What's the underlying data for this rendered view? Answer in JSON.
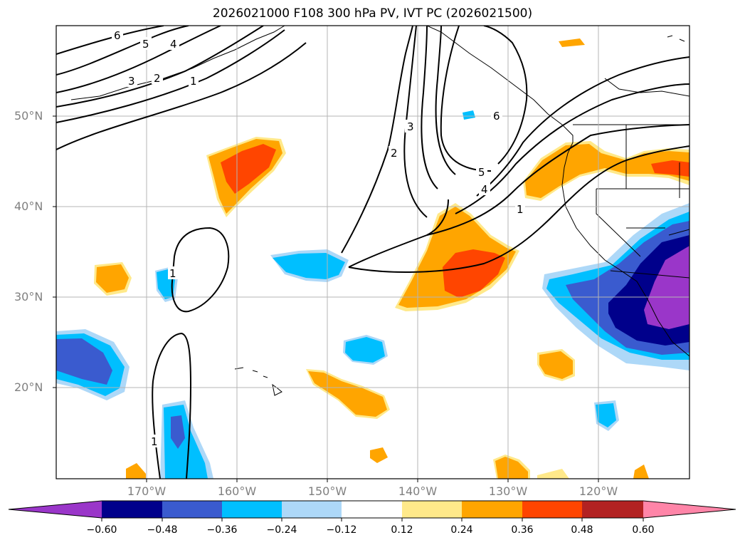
{
  "title": "2026021000 F108 300 hPa PV, IVT PC (2026021500)",
  "map": {
    "lat_labels": [
      "50°N",
      "40°N",
      "30°N",
      "20°N"
    ],
    "lon_labels": [
      "170°W",
      "160°W",
      "150°W",
      "140°W",
      "130°W",
      "120°W"
    ],
    "extent": {
      "lon_min": -180,
      "lon_max": -110,
      "lat_min": 10,
      "lat_max": 60
    },
    "contour_labels": [
      "6",
      "5",
      "4",
      "3",
      "2",
      "1",
      "2",
      "3",
      "6",
      "5",
      "4",
      "1",
      "1",
      "1"
    ]
  },
  "colorbar": {
    "ticks": [
      "−0.60",
      "−0.48",
      "−0.36",
      "−0.24",
      "−0.12",
      "0.12",
      "0.24",
      "0.36",
      "0.48",
      "0.60"
    ],
    "colors": [
      "#9a36c9",
      "#00008b",
      "#3a5bcf",
      "#00bfff",
      "#add8f8",
      "#ffffff",
      "#ffe98a",
      "#ffa500",
      "#ff4500",
      "#b22222",
      "#ff85a8"
    ]
  },
  "colors": {
    "orange": "#ffa500",
    "red_orange": "#ff4500",
    "light_yellow": "#ffe98a",
    "deep_sky_blue": "#00bfff",
    "light_blue": "#add8f8",
    "royal_blue": "#3a5bcf",
    "navy": "#00008b",
    "purple": "#9a36c9"
  }
}
